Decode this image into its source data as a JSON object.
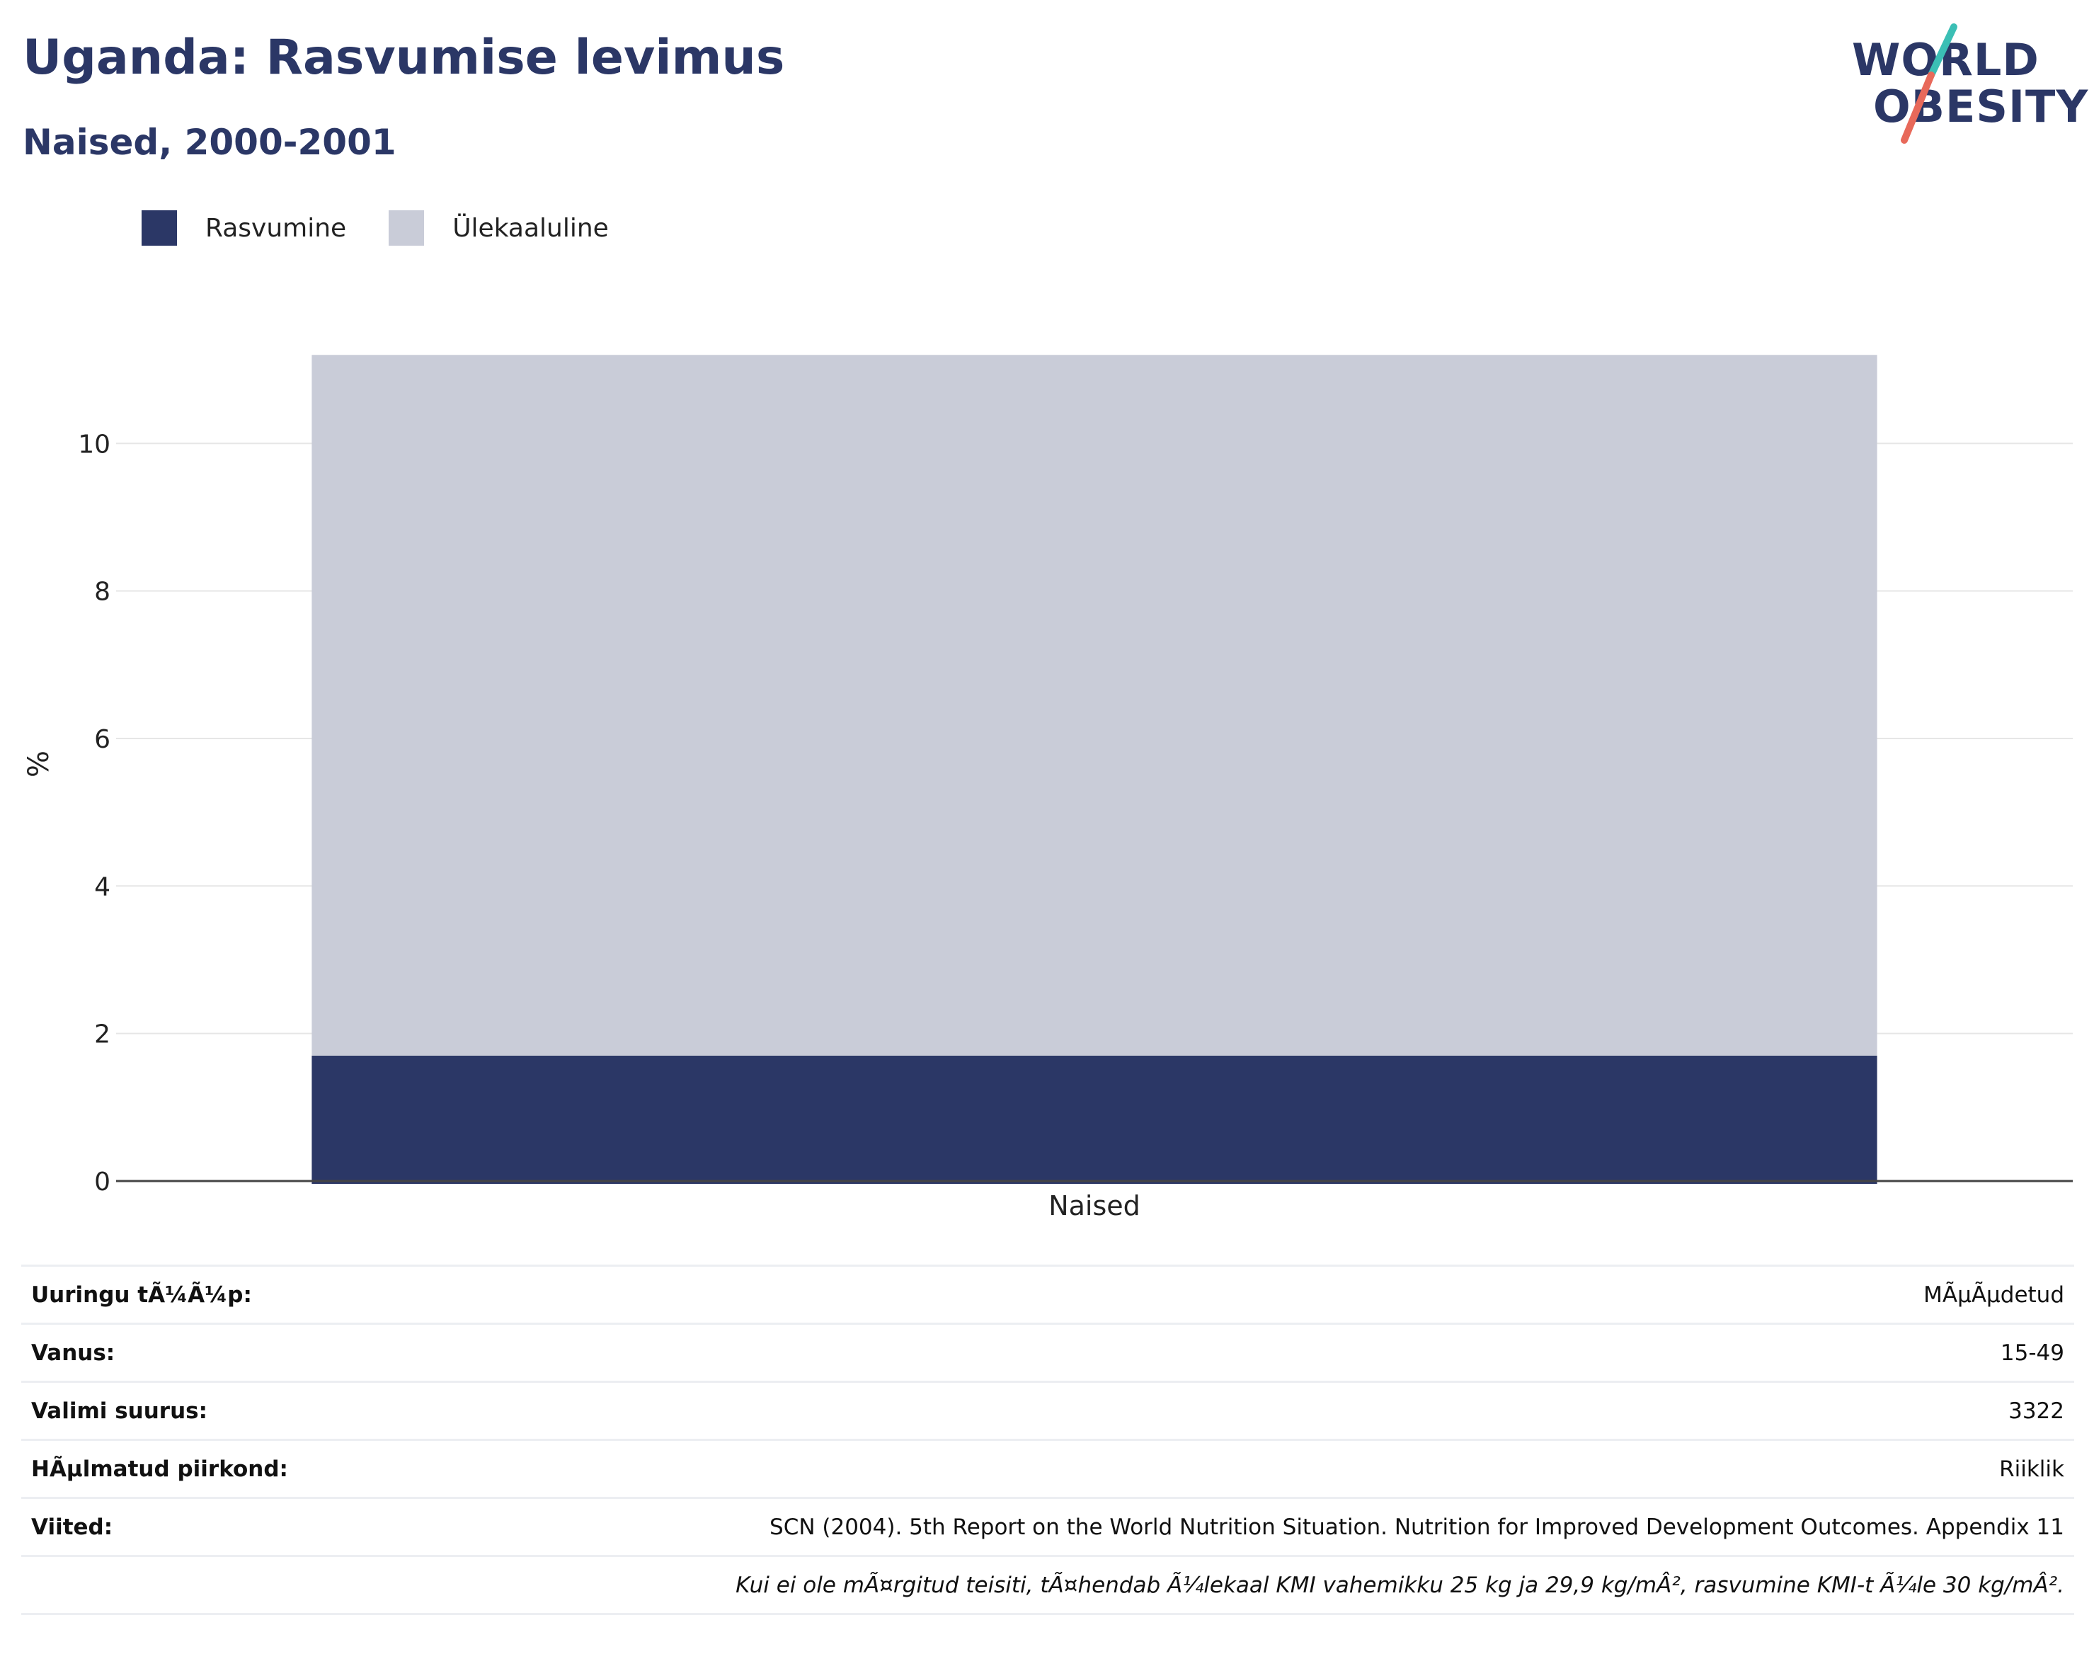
{
  "header": {
    "title": "Uganda: Rasvumise levimus",
    "subtitle": "Naised, 2000-2001"
  },
  "logo": {
    "line1": "WORLD",
    "line2": "OBESITY",
    "text_color": "#2b3766",
    "accent_teal": "#3bbfb5",
    "accent_coral": "#e8695a"
  },
  "legend": {
    "items": [
      {
        "label": "Rasvumine",
        "color": "#2b3766"
      },
      {
        "label": "Ülekaaluline",
        "color": "#c9ccd8"
      }
    ]
  },
  "chart_data": {
    "type": "bar",
    "stacked": true,
    "categories": [
      "Naised"
    ],
    "series": [
      {
        "name": "Rasvumine",
        "values": [
          1.7
        ],
        "color": "#2b3766"
      },
      {
        "name": "Ülekaaluline",
        "values": [
          9.5
        ],
        "color": "#c9ccd8"
      }
    ],
    "ylabel": "%",
    "ylim": [
      0,
      11.5
    ],
    "yticks": [
      0,
      2,
      4,
      6,
      8,
      10
    ],
    "grid": true,
    "legend_position": "top-left"
  },
  "info": {
    "rows": [
      {
        "key": "Uuringu tÃ¼Ã¼p:",
        "value": "MÃµÃµdetud"
      },
      {
        "key": "Vanus:",
        "value": "15-49"
      },
      {
        "key": "Valimi suurus:",
        "value": "3322"
      },
      {
        "key": "HÃµlmatud piirkond:",
        "value": "Riiklik"
      },
      {
        "key": "Viited:",
        "value": "SCN (2004). 5th Report on the World Nutrition Situation. Nutrition for Improved Development Outcomes. Appendix 11"
      }
    ],
    "note": "Kui ei ole mÃ¤rgitud teisiti, tÃ¤hendab Ã¼lekaal KMI vahemikku 25 kg ja 29,9 kg/mÂ², rasvumine KMI-t Ã¼le 30 kg/mÂ²."
  }
}
